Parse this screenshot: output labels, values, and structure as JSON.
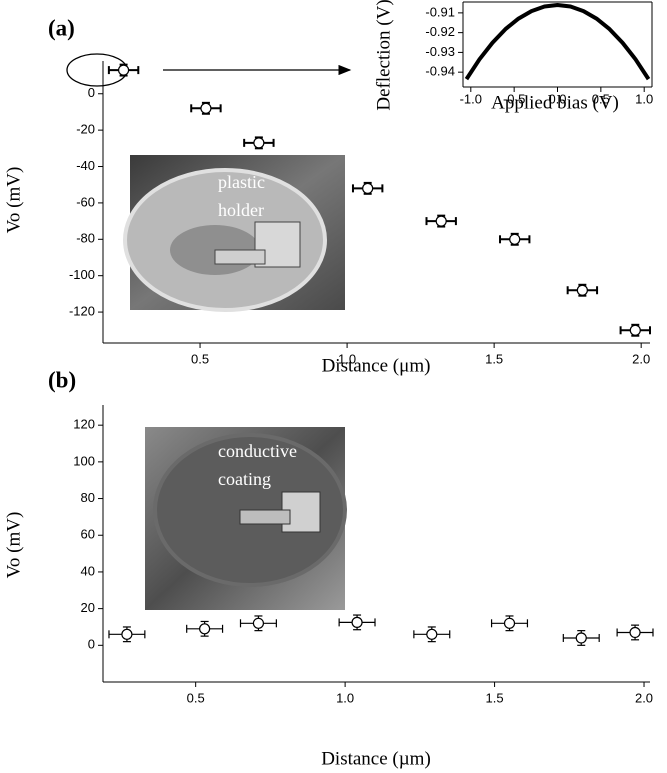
{
  "chart_data": [
    {
      "type": "scatter",
      "panel": "(a)",
      "xlabel": "Distance (μm)",
      "ylabel": "Vo (mV)",
      "photo_label": [
        "plastic",
        "holder"
      ],
      "x": [
        0.24,
        0.52,
        0.7,
        1.07,
        1.32,
        1.57,
        1.8,
        1.98
      ],
      "values": [
        13,
        -8,
        -27,
        -52,
        -70,
        -80,
        -108,
        -130
      ],
      "xerr": [
        0.05,
        0.05,
        0.05,
        0.05,
        0.05,
        0.05,
        0.05,
        0.05
      ],
      "yerr": [
        3,
        3,
        3,
        3,
        3,
        3,
        3,
        3
      ],
      "color": "#000000",
      "xlim": [
        0.17,
        2.03
      ],
      "ylim": [
        -137,
        18
      ],
      "xticks": [
        0.5,
        {
          "value": 1,
          "label": "1.0"
        },
        1.5,
        {
          "value": 2,
          "label": "2.0"
        }
      ],
      "yticks": [
        0,
        -20,
        -40,
        -60,
        -80,
        -100,
        -120
      ]
    },
    {
      "type": "scatter",
      "panel": "(b)",
      "xlabel": "Distance (µm)",
      "ylabel": "Vo (mV)",
      "photo_label": [
        "conductive",
        "coating"
      ],
      "x": [
        0.27,
        0.53,
        0.71,
        1.04,
        1.29,
        1.55,
        1.79,
        1.97
      ],
      "values": [
        6,
        9,
        12,
        12.5,
        6,
        12,
        4,
        7
      ],
      "xerr": [
        0.06,
        0.06,
        0.06,
        0.06,
        0.06,
        0.06,
        0.06,
        0.06
      ],
      "yerr": [
        4,
        4,
        4,
        4,
        4,
        4,
        4,
        4
      ],
      "color": "#000000",
      "xlim": [
        0.19,
        2.02
      ],
      "ylim": [
        -20,
        131
      ],
      "xticks": [
        0.5,
        {
          "value": 1,
          "label": "1.0"
        },
        1.5,
        {
          "value": 2,
          "label": "2.0"
        }
      ],
      "yticks": [
        0,
        20,
        40,
        60,
        80,
        100,
        120
      ]
    },
    {
      "type": "line",
      "xlabel": "Applied bias (V)",
      "ylabel": "Deflection (V)",
      "x": [
        -1.05,
        -0.9,
        -0.75,
        -0.6,
        -0.45,
        -0.3,
        -0.15,
        0,
        0.15,
        0.3,
        0.45,
        0.6,
        0.75,
        0.9,
        1.05
      ],
      "values": [
        -0.9435,
        -0.9335,
        -0.9251,
        -0.9182,
        -0.9129,
        -0.9091,
        -0.9068,
        -0.906,
        -0.9068,
        -0.9091,
        -0.9129,
        -0.9182,
        -0.9251,
        -0.9335,
        -0.9435
      ],
      "color": "#000000",
      "xlim": [
        -1.09,
        1.09
      ],
      "ylim": [
        -0.9475,
        -0.9045
      ],
      "xticks": [
        {
          "value": -1,
          "label": "-1.0"
        },
        -0.5,
        {
          "value": 0,
          "label": "0.0"
        },
        0.5,
        {
          "value": 1,
          "label": "1.0"
        }
      ],
      "yticks": [
        -0.91,
        -0.92,
        -0.93,
        -0.94
      ]
    }
  ]
}
